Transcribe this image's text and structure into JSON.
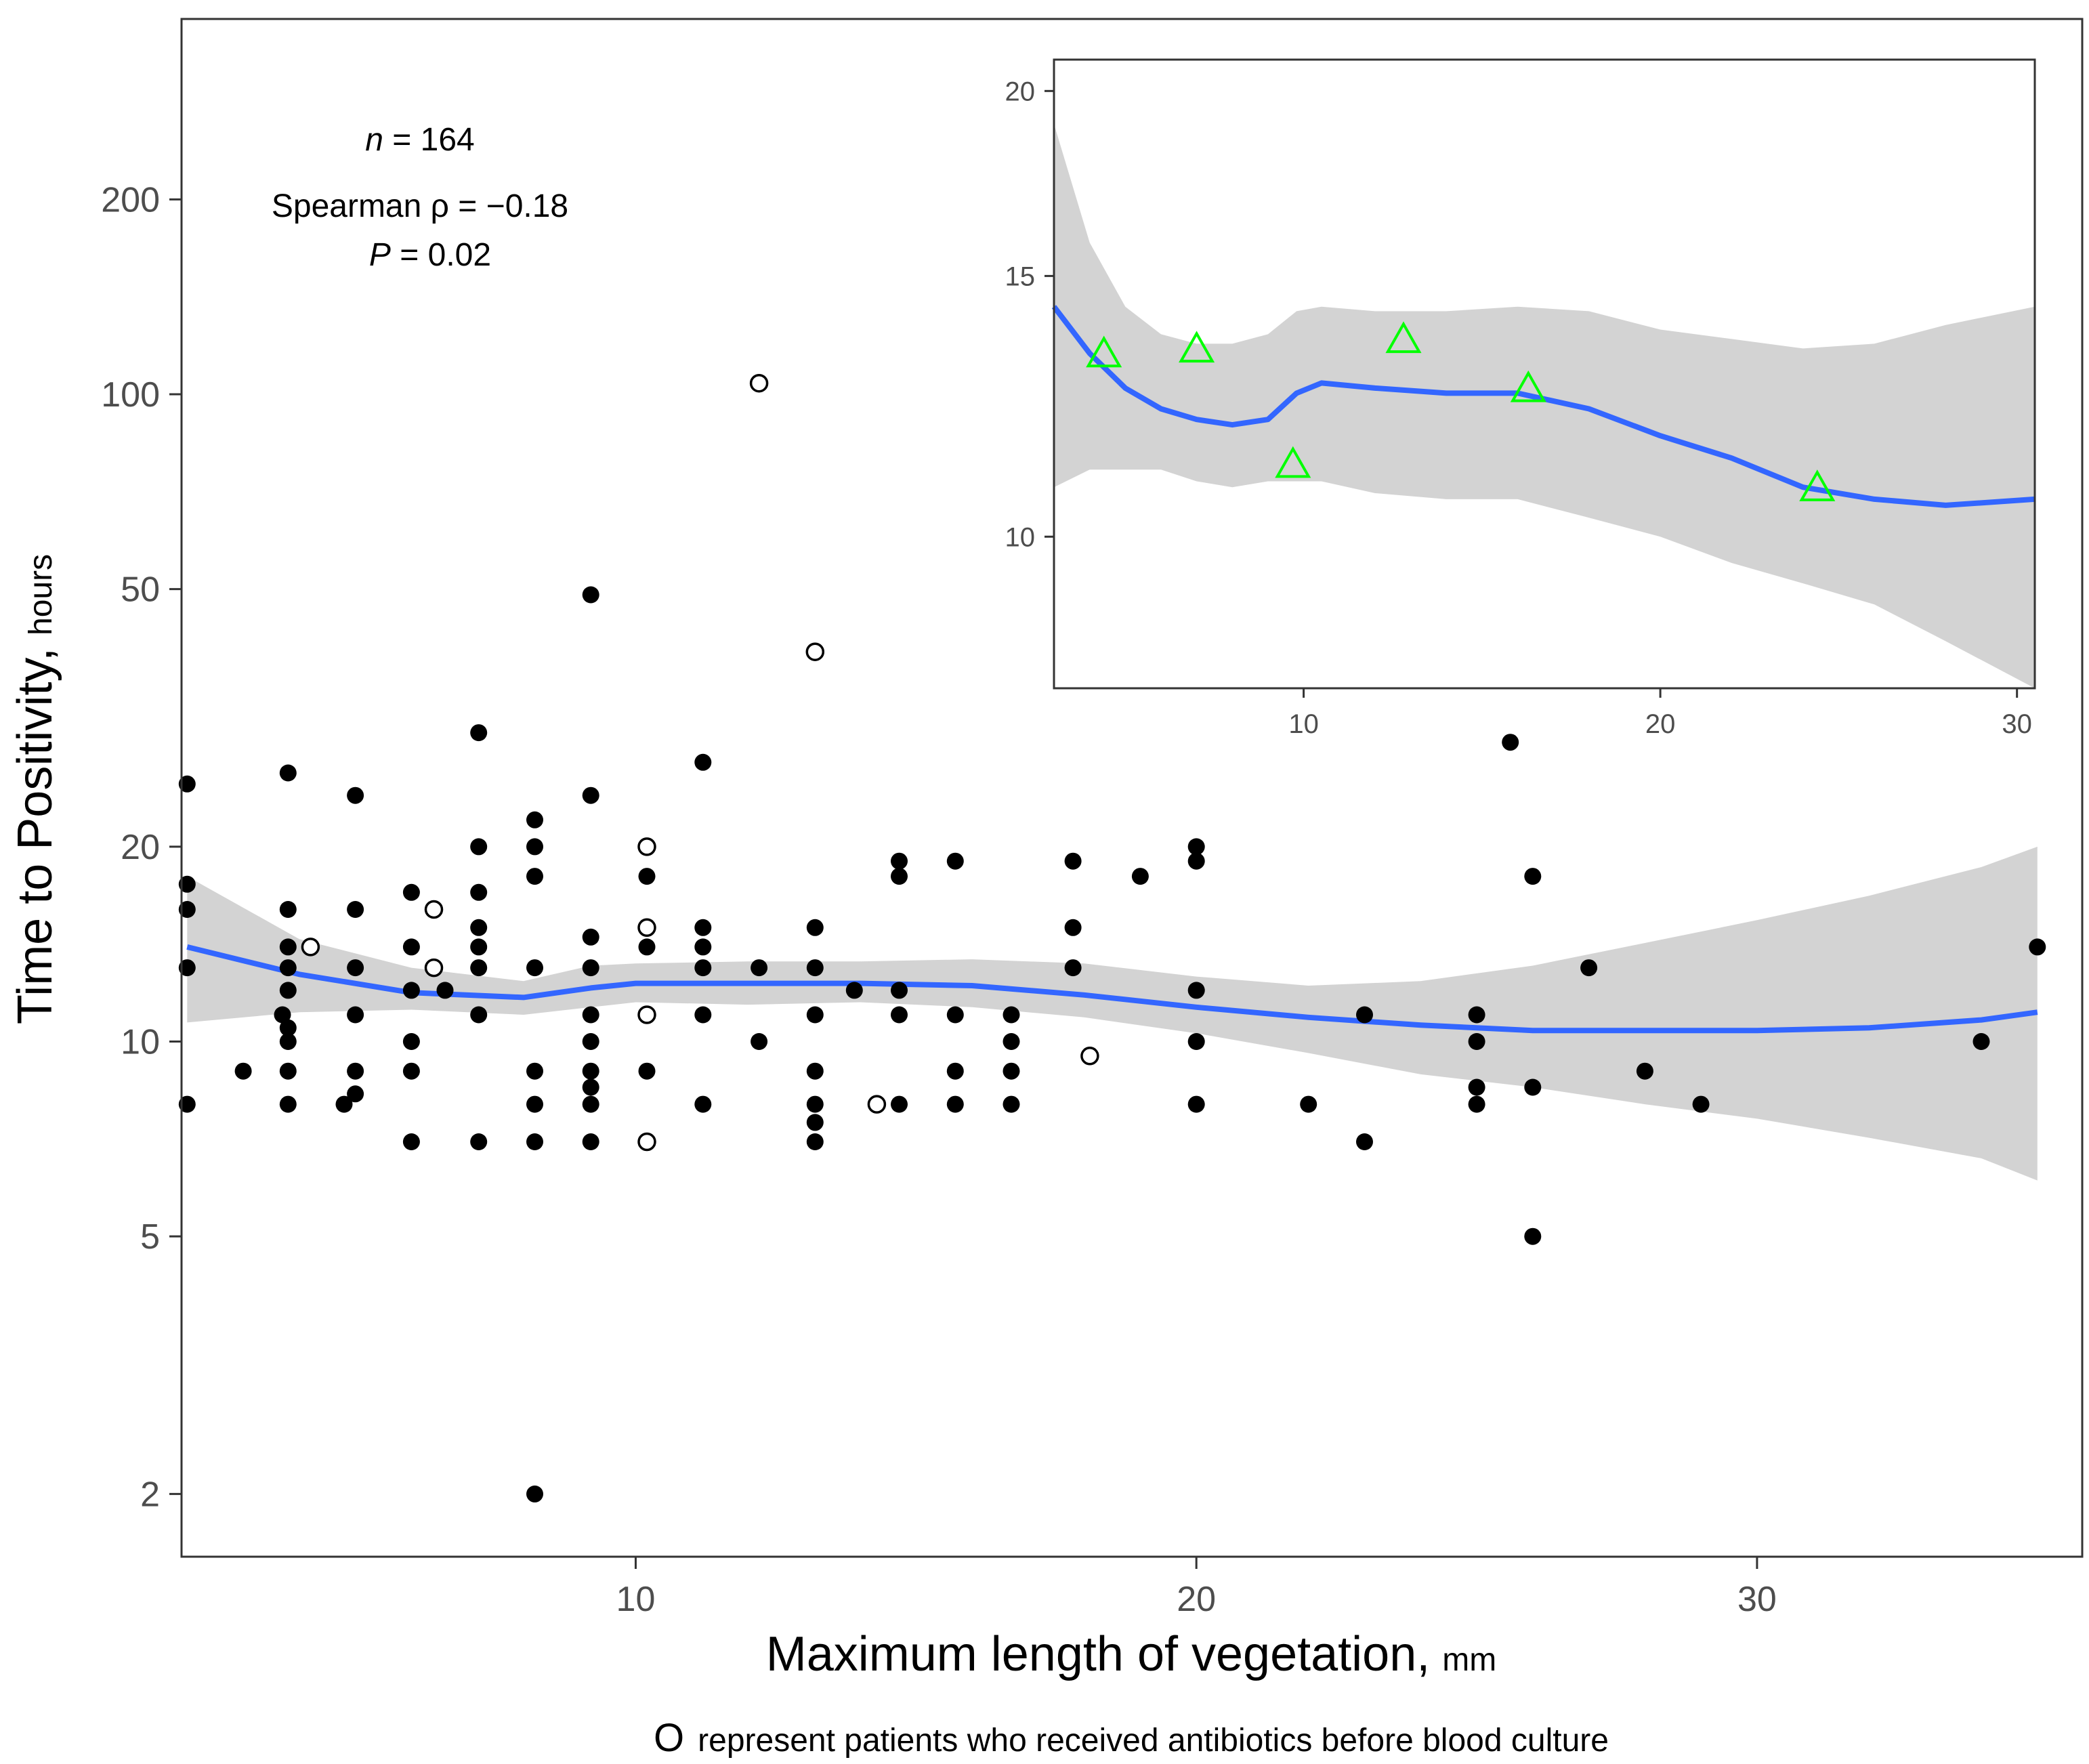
{
  "chart_data": {
    "type": "scatter",
    "main": {
      "xlabel": "Maximum length of vegetation,",
      "xlabel_unit": "mm",
      "ylabel": "Time to Positivity,",
      "ylabel_unit": "hours",
      "x_range": [
        1.9,
        35.8
      ],
      "y_range_log": [
        1.6,
        380
      ],
      "y_scale": "log10",
      "x_ticks": [
        10,
        20,
        30
      ],
      "x_tick_labels": [
        "10",
        "20",
        "30"
      ],
      "y_ticks": [
        2,
        5,
        10,
        20,
        50,
        100,
        200
      ],
      "y_tick_labels": [
        "2",
        "5",
        "10",
        "20",
        "50",
        "100",
        "200"
      ],
      "annotation": {
        "n_label": "n",
        "n_value": " = 164",
        "spearman": "Spearman ρ = −0.18",
        "p_label": "P",
        "p_value": " = 0.02"
      },
      "footnote_symbol": "O",
      "footnote": "represent patients who received antibiotics before blood culture",
      "points_no_antibiotics": [
        [
          2,
          25
        ],
        [
          2,
          17.5
        ],
        [
          2,
          16
        ],
        [
          2,
          13
        ],
        [
          2,
          8
        ],
        [
          3,
          9
        ],
        [
          3.8,
          26
        ],
        [
          3.8,
          16
        ],
        [
          3.8,
          14
        ],
        [
          3.8,
          13
        ],
        [
          3.8,
          12
        ],
        [
          3.8,
          10.5
        ],
        [
          3.8,
          10
        ],
        [
          3.8,
          9
        ],
        [
          3.8,
          8
        ],
        [
          3.7,
          11
        ],
        [
          4.8,
          8
        ],
        [
          5,
          24
        ],
        [
          5,
          16
        ],
        [
          5,
          13
        ],
        [
          5,
          11
        ],
        [
          5,
          9
        ],
        [
          5,
          8.3
        ],
        [
          6,
          17
        ],
        [
          6,
          14
        ],
        [
          6,
          12
        ],
        [
          6,
          10
        ],
        [
          6,
          9
        ],
        [
          6,
          7
        ],
        [
          6.6,
          12
        ],
        [
          7.2,
          30
        ],
        [
          7.2,
          20
        ],
        [
          7.2,
          17
        ],
        [
          7.2,
          15
        ],
        [
          7.2,
          14
        ],
        [
          7.2,
          13
        ],
        [
          7.2,
          11
        ],
        [
          7.2,
          7
        ],
        [
          8.2,
          2
        ],
        [
          8.2,
          22
        ],
        [
          8.2,
          20
        ],
        [
          8.2,
          18
        ],
        [
          8.2,
          13
        ],
        [
          8.2,
          9
        ],
        [
          8.2,
          8
        ],
        [
          8.2,
          7
        ],
        [
          9.2,
          49
        ],
        [
          9.2,
          24
        ],
        [
          9.2,
          14.5
        ],
        [
          9.2,
          13
        ],
        [
          9.2,
          11
        ],
        [
          9.2,
          10
        ],
        [
          9.2,
          9
        ],
        [
          9.2,
          8.5
        ],
        [
          9.2,
          8
        ],
        [
          9.2,
          7
        ],
        [
          10.2,
          18
        ],
        [
          10.2,
          14
        ],
        [
          10.2,
          9
        ],
        [
          11.2,
          27
        ],
        [
          11.2,
          15
        ],
        [
          11.2,
          14
        ],
        [
          11.2,
          13
        ],
        [
          11.2,
          11
        ],
        [
          11.2,
          8
        ],
        [
          12.2,
          13
        ],
        [
          12.2,
          10
        ],
        [
          13.2,
          15
        ],
        [
          13.2,
          13
        ],
        [
          13.2,
          11
        ],
        [
          13.2,
          9
        ],
        [
          13.2,
          8
        ],
        [
          13.2,
          7.5
        ],
        [
          13.2,
          7
        ],
        [
          13.9,
          12
        ],
        [
          14.7,
          19
        ],
        [
          14.7,
          18
        ],
        [
          14.7,
          12
        ],
        [
          14.7,
          11
        ],
        [
          14.7,
          8
        ],
        [
          15.7,
          19
        ],
        [
          15.7,
          11
        ],
        [
          15.7,
          9
        ],
        [
          15.7,
          8
        ],
        [
          16.7,
          11
        ],
        [
          16.7,
          10
        ],
        [
          16.7,
          9
        ],
        [
          16.7,
          8
        ],
        [
          17.8,
          19
        ],
        [
          17.8,
          15
        ],
        [
          17.8,
          13
        ],
        [
          19,
          18
        ],
        [
          20,
          20
        ],
        [
          20,
          19
        ],
        [
          20,
          12
        ],
        [
          20,
          10
        ],
        [
          20,
          8
        ],
        [
          22,
          8
        ],
        [
          23,
          11
        ],
        [
          23,
          7
        ],
        [
          25,
          11
        ],
        [
          25,
          10
        ],
        [
          25,
          8.5
        ],
        [
          25,
          8
        ],
        [
          25.6,
          29
        ],
        [
          26,
          18
        ],
        [
          26,
          8.5
        ],
        [
          26,
          5
        ],
        [
          27,
          13
        ],
        [
          28,
          9
        ],
        [
          29,
          8
        ],
        [
          34,
          10
        ],
        [
          35,
          14
        ]
      ],
      "points_antibiotics": [
        [
          4.2,
          14
        ],
        [
          6.4,
          16
        ],
        [
          6.4,
          13
        ],
        [
          10.2,
          20
        ],
        [
          10.2,
          15
        ],
        [
          10.2,
          11
        ],
        [
          10.2,
          7
        ],
        [
          12.2,
          104
        ],
        [
          13.2,
          40
        ],
        [
          14.3,
          8
        ],
        [
          18.1,
          9.5
        ]
      ],
      "smooth_x": [
        2,
        4,
        6,
        8,
        9.2,
        10,
        12,
        14,
        16,
        18,
        20,
        22,
        24,
        26,
        28,
        30,
        32,
        34,
        35
      ],
      "smooth_y": [
        14,
        12.7,
        11.9,
        11.7,
        12.1,
        12.3,
        12.3,
        12.3,
        12.2,
        11.8,
        11.3,
        10.9,
        10.6,
        10.4,
        10.4,
        10.4,
        10.5,
        10.8,
        11.1
      ],
      "band_lower": [
        10.7,
        11.1,
        11.2,
        11,
        11.3,
        11.5,
        11.4,
        11.5,
        11.3,
        10.9,
        10.3,
        9.6,
        8.9,
        8.5,
        8.0,
        7.6,
        7.1,
        6.6,
        6.1
      ],
      "band_upper": [
        18.0,
        14.4,
        13.0,
        12.4,
        13.1,
        13.2,
        13.3,
        13.3,
        13.4,
        13.2,
        12.6,
        12.2,
        12.4,
        13.1,
        14.2,
        15.4,
        16.8,
        18.6,
        20.0
      ],
      "line_color": "#3366ff",
      "band_color": "#d3d3d3"
    },
    "inset": {
      "x_range": [
        3,
        30.5
      ],
      "y_range_log": [
        7.9,
        21
      ],
      "y_scale": "log10",
      "x_ticks": [
        10,
        20,
        30
      ],
      "x_tick_labels": [
        "10",
        "20",
        "30"
      ],
      "y_ticks": [
        10,
        15,
        20
      ],
      "y_tick_labels": [
        "10",
        "15",
        "20"
      ],
      "triangles": [
        [
          4.4,
          13.3
        ],
        [
          7,
          13.4
        ],
        [
          9.7,
          11.2
        ],
        [
          12.8,
          13.6
        ],
        [
          16.3,
          12.6
        ],
        [
          24.4,
          10.8
        ]
      ],
      "triangle_color": "#00ff00",
      "smooth_x": [
        3,
        4,
        5,
        6,
        7,
        8,
        9,
        9.8,
        10.5,
        12,
        14,
        16,
        18,
        20,
        22,
        24,
        26,
        28,
        30.5
      ],
      "smooth_y": [
        14.3,
        13.3,
        12.6,
        12.2,
        12.0,
        11.9,
        12.0,
        12.5,
        12.7,
        12.6,
        12.5,
        12.5,
        12.2,
        11.7,
        11.3,
        10.8,
        10.6,
        10.5,
        10.6
      ],
      "band_lower": [
        10.8,
        11.1,
        11.1,
        11.1,
        10.9,
        10.8,
        10.9,
        10.9,
        10.9,
        10.7,
        10.6,
        10.6,
        10.3,
        10.0,
        9.6,
        9.3,
        9.0,
        8.5,
        7.9
      ],
      "band_upper": [
        19.0,
        15.8,
        14.3,
        13.7,
        13.5,
        13.5,
        13.7,
        14.2,
        14.3,
        14.2,
        14.2,
        14.3,
        14.2,
        13.8,
        13.6,
        13.4,
        13.5,
        13.9,
        14.3
      ]
    }
  }
}
